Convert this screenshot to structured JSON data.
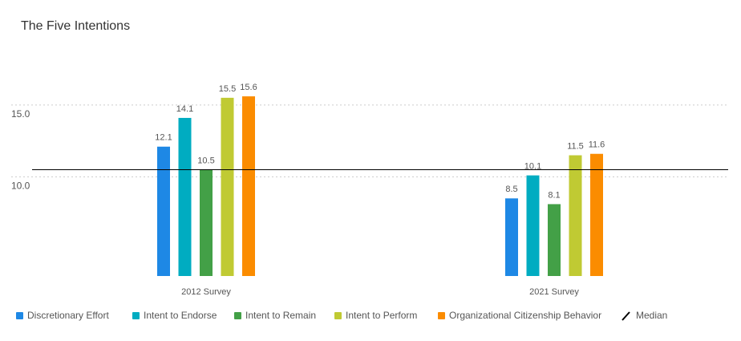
{
  "chart_data": {
    "type": "bar",
    "title": "The Five Intentions",
    "categories": [
      "2012 Survey",
      "2021 Survey"
    ],
    "series": [
      {
        "name": "Discretionary Effort",
        "color": "#1e88e5",
        "values": [
          12.1,
          8.5
        ]
      },
      {
        "name": "Intent to Endorse",
        "color": "#00acc1",
        "values": [
          14.1,
          10.1
        ]
      },
      {
        "name": "Intent to Remain",
        "color": "#43a047",
        "values": [
          10.5,
          8.1
        ]
      },
      {
        "name": "Intent to Perform",
        "color": "#c0ca33",
        "values": [
          15.5,
          11.5
        ]
      },
      {
        "name": "Organizational Citizenship Behavior",
        "color": "#fb8c00",
        "values": [
          15.6,
          11.6
        ]
      }
    ],
    "median": {
      "name": "Median",
      "value": 10.5,
      "color": "#000000"
    },
    "ylim": [
      3.1,
      17
    ],
    "yticks": [
      {
        "value": 10,
        "label": "10.0"
      },
      {
        "value": 15,
        "label": "15.0"
      }
    ],
    "grid": true
  }
}
